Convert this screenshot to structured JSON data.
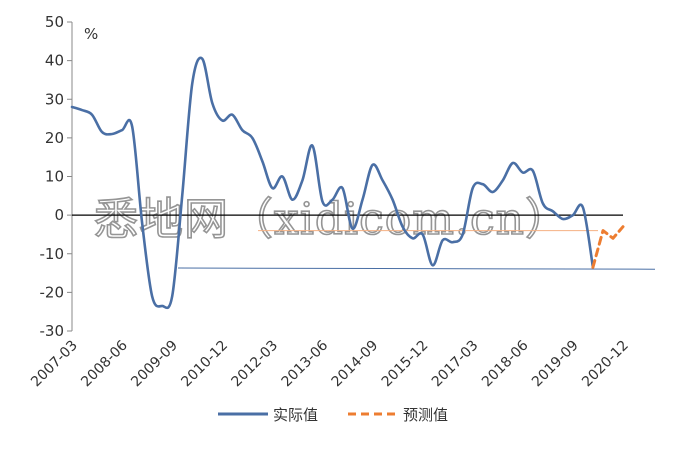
{
  "watermark": "悉地网（xidicom.cn）",
  "chart_data": {
    "type": "line",
    "unit_label": "%",
    "ylim": [
      -30,
      50
    ],
    "yticks": [
      50,
      40,
      30,
      20,
      10,
      0,
      -10,
      -20,
      -30
    ],
    "x_tick_labels": [
      "2007-03",
      "2008-06",
      "2009-09",
      "2010-12",
      "2012-03",
      "2013-06",
      "2014-09",
      "2015-12",
      "2017-03",
      "2018-06",
      "2019-09",
      "2020-12"
    ],
    "grid": false,
    "legend_position": "bottom",
    "colors": {
      "actual": "#4a6fa5",
      "forecast": "#ed7d31",
      "thin": "#f4b183",
      "axis": "#000000"
    },
    "series": [
      {
        "name": "实际值",
        "style": "solid",
        "points": [
          [
            "2007-03",
            28
          ],
          [
            "2007-06",
            27.2
          ],
          [
            "2007-09",
            26
          ],
          [
            "2007-12",
            21.5
          ],
          [
            "2008-03",
            21
          ],
          [
            "2008-06",
            22
          ],
          [
            "2008-09",
            23
          ],
          [
            "2008-12",
            -2
          ],
          [
            "2009-03",
            -21
          ],
          [
            "2009-06",
            -23.5
          ],
          [
            "2009-09",
            -21
          ],
          [
            "2009-12",
            5
          ],
          [
            "2010-03",
            34
          ],
          [
            "2010-06",
            40.5
          ],
          [
            "2010-09",
            29
          ],
          [
            "2010-12",
            24.5
          ],
          [
            "2011-03",
            26
          ],
          [
            "2011-06",
            22
          ],
          [
            "2011-09",
            20
          ],
          [
            "2011-12",
            14
          ],
          [
            "2012-03",
            7
          ],
          [
            "2012-06",
            10
          ],
          [
            "2012-09",
            4
          ],
          [
            "2012-12",
            9
          ],
          [
            "2013-03",
            18
          ],
          [
            "2013-06",
            3.5
          ],
          [
            "2013-09",
            4
          ],
          [
            "2013-12",
            7
          ],
          [
            "2014-03",
            -3.5
          ],
          [
            "2014-06",
            4
          ],
          [
            "2014-09",
            13
          ],
          [
            "2014-12",
            9
          ],
          [
            "2015-03",
            4
          ],
          [
            "2015-06",
            -3
          ],
          [
            "2015-09",
            -6
          ],
          [
            "2015-12",
            -5
          ],
          [
            "2016-03",
            -13
          ],
          [
            "2016-06",
            -6.5
          ],
          [
            "2016-09",
            -7
          ],
          [
            "2016-12",
            -5
          ],
          [
            "2017-03",
            7
          ],
          [
            "2017-06",
            8
          ],
          [
            "2017-09",
            6
          ],
          [
            "2017-12",
            9
          ],
          [
            "2018-03",
            13.5
          ],
          [
            "2018-06",
            11
          ],
          [
            "2018-09",
            11.5
          ],
          [
            "2018-12",
            3
          ],
          [
            "2019-03",
            1
          ],
          [
            "2019-06",
            -1
          ],
          [
            "2019-09",
            0
          ],
          [
            "2019-12",
            2
          ],
          [
            "2020-03",
            -13.5
          ]
        ]
      },
      {
        "name": "预测值",
        "style": "dashed",
        "points": [
          [
            "2020-03",
            -13.5
          ],
          [
            "2020-06",
            -4
          ],
          [
            "2020-09",
            -6
          ],
          [
            "2020-12",
            -3
          ]
        ]
      }
    ]
  }
}
